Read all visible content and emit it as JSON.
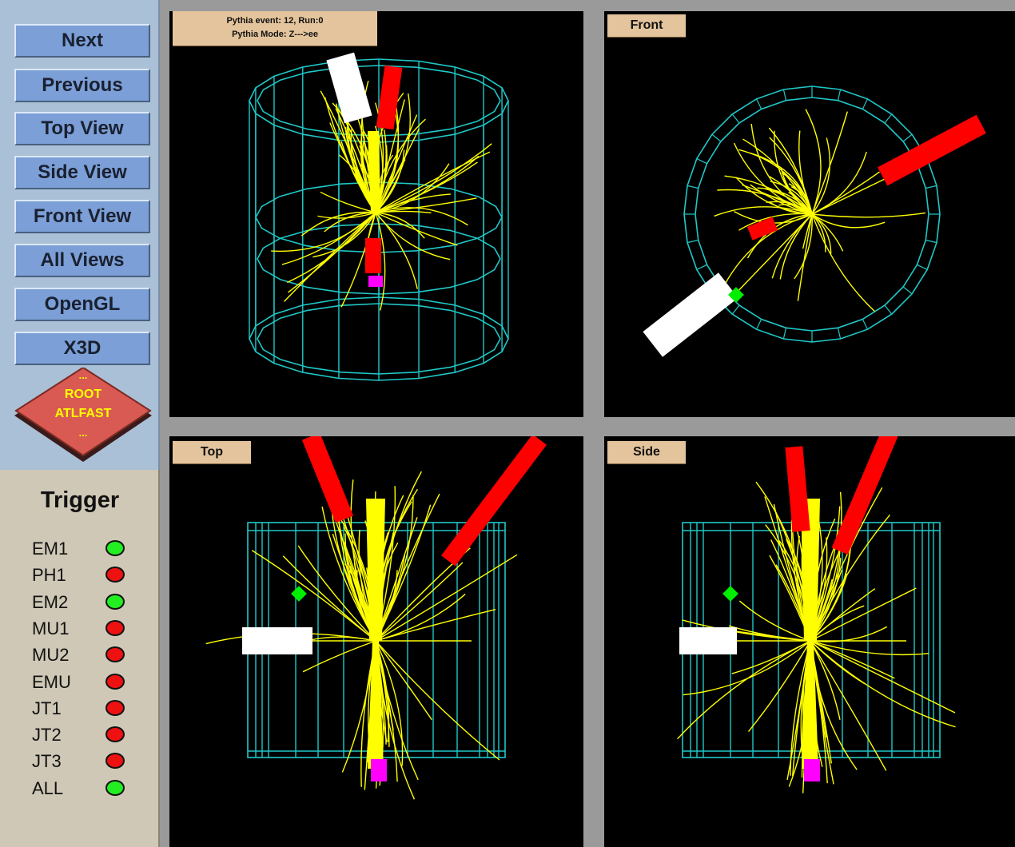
{
  "nav": {
    "next": "Next",
    "previous": "Previous",
    "top_view": "Top View",
    "side_view": "Side View",
    "front_view": "Front View",
    "all_views": "All Views",
    "opengl": "OpenGL",
    "x3d": "X3D"
  },
  "logo": {
    "line_top": "...",
    "line1": "ROOT",
    "line2": "ATLFAST",
    "line_bottom": "..."
  },
  "trigger": {
    "title": "Trigger",
    "items": [
      {
        "label": "EM1",
        "state": "on"
      },
      {
        "label": "PH1",
        "state": "off"
      },
      {
        "label": "EM2",
        "state": "on"
      },
      {
        "label": "MU1",
        "state": "off"
      },
      {
        "label": "MU2",
        "state": "off"
      },
      {
        "label": "EMU",
        "state": "off"
      },
      {
        "label": "JT1",
        "state": "off"
      },
      {
        "label": "JT2",
        "state": "off"
      },
      {
        "label": "JT3",
        "state": "off"
      },
      {
        "label": "ALL",
        "state": "on"
      }
    ]
  },
  "views": {
    "perspective": {
      "line1": "Pythia event: 12, Run:0",
      "line2": "Pythia Mode: Z--->ee"
    },
    "front": {
      "label": "Front"
    },
    "top": {
      "label": "Top"
    },
    "side": {
      "label": "Side"
    }
  },
  "colors": {
    "detector": "#20c8c8",
    "track": "#ffff00",
    "jet": "#ff0000",
    "electron": "#ffffff",
    "muon": "#ff00ff",
    "photon": "#00ee00",
    "led_on": "#22ee22",
    "led_off": "#ee1111"
  }
}
